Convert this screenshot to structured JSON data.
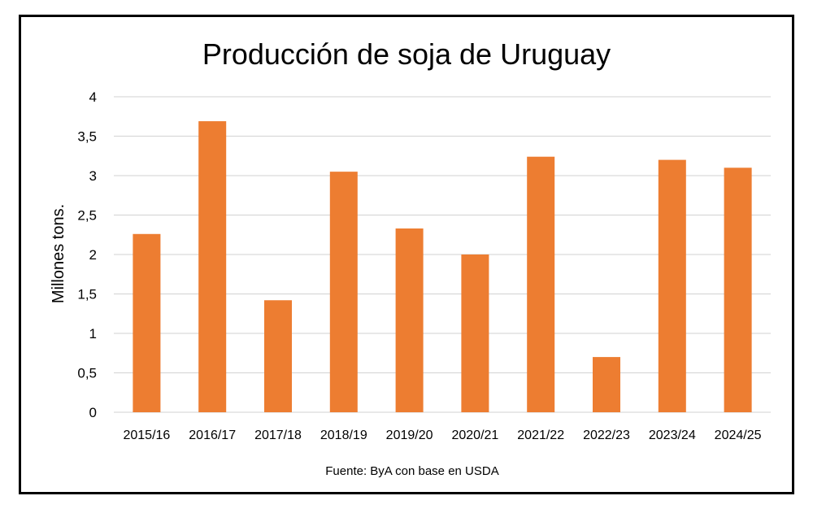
{
  "chart_data": {
    "type": "bar",
    "title": "Producción de soja de Uruguay",
    "xlabel": "",
    "ylabel": "Millones tons.",
    "categories": [
      "2015/16",
      "2016/17",
      "2017/18",
      "2018/19",
      "2019/20",
      "2020/21",
      "2021/22",
      "2022/23",
      "2023/24",
      "2024/25"
    ],
    "values": [
      2.26,
      3.69,
      1.42,
      3.05,
      2.33,
      2.0,
      3.24,
      0.7,
      3.2,
      3.1
    ],
    "ylim": [
      0,
      4
    ],
    "yticks": [
      {
        "value": 0,
        "label": "0"
      },
      {
        "value": 0.5,
        "label": "0,5"
      },
      {
        "value": 1,
        "label": "1"
      },
      {
        "value": 1.5,
        "label": "1,5"
      },
      {
        "value": 2,
        "label": "2"
      },
      {
        "value": 2.5,
        "label": "2,5"
      },
      {
        "value": 3,
        "label": "3"
      },
      {
        "value": 3.5,
        "label": "3,5"
      },
      {
        "value": 4,
        "label": "4"
      }
    ],
    "grid": true,
    "bar_color": "#ed7d31",
    "grid_color": "#d9d9d9",
    "source": "Fuente: ByA con base en USDA"
  }
}
